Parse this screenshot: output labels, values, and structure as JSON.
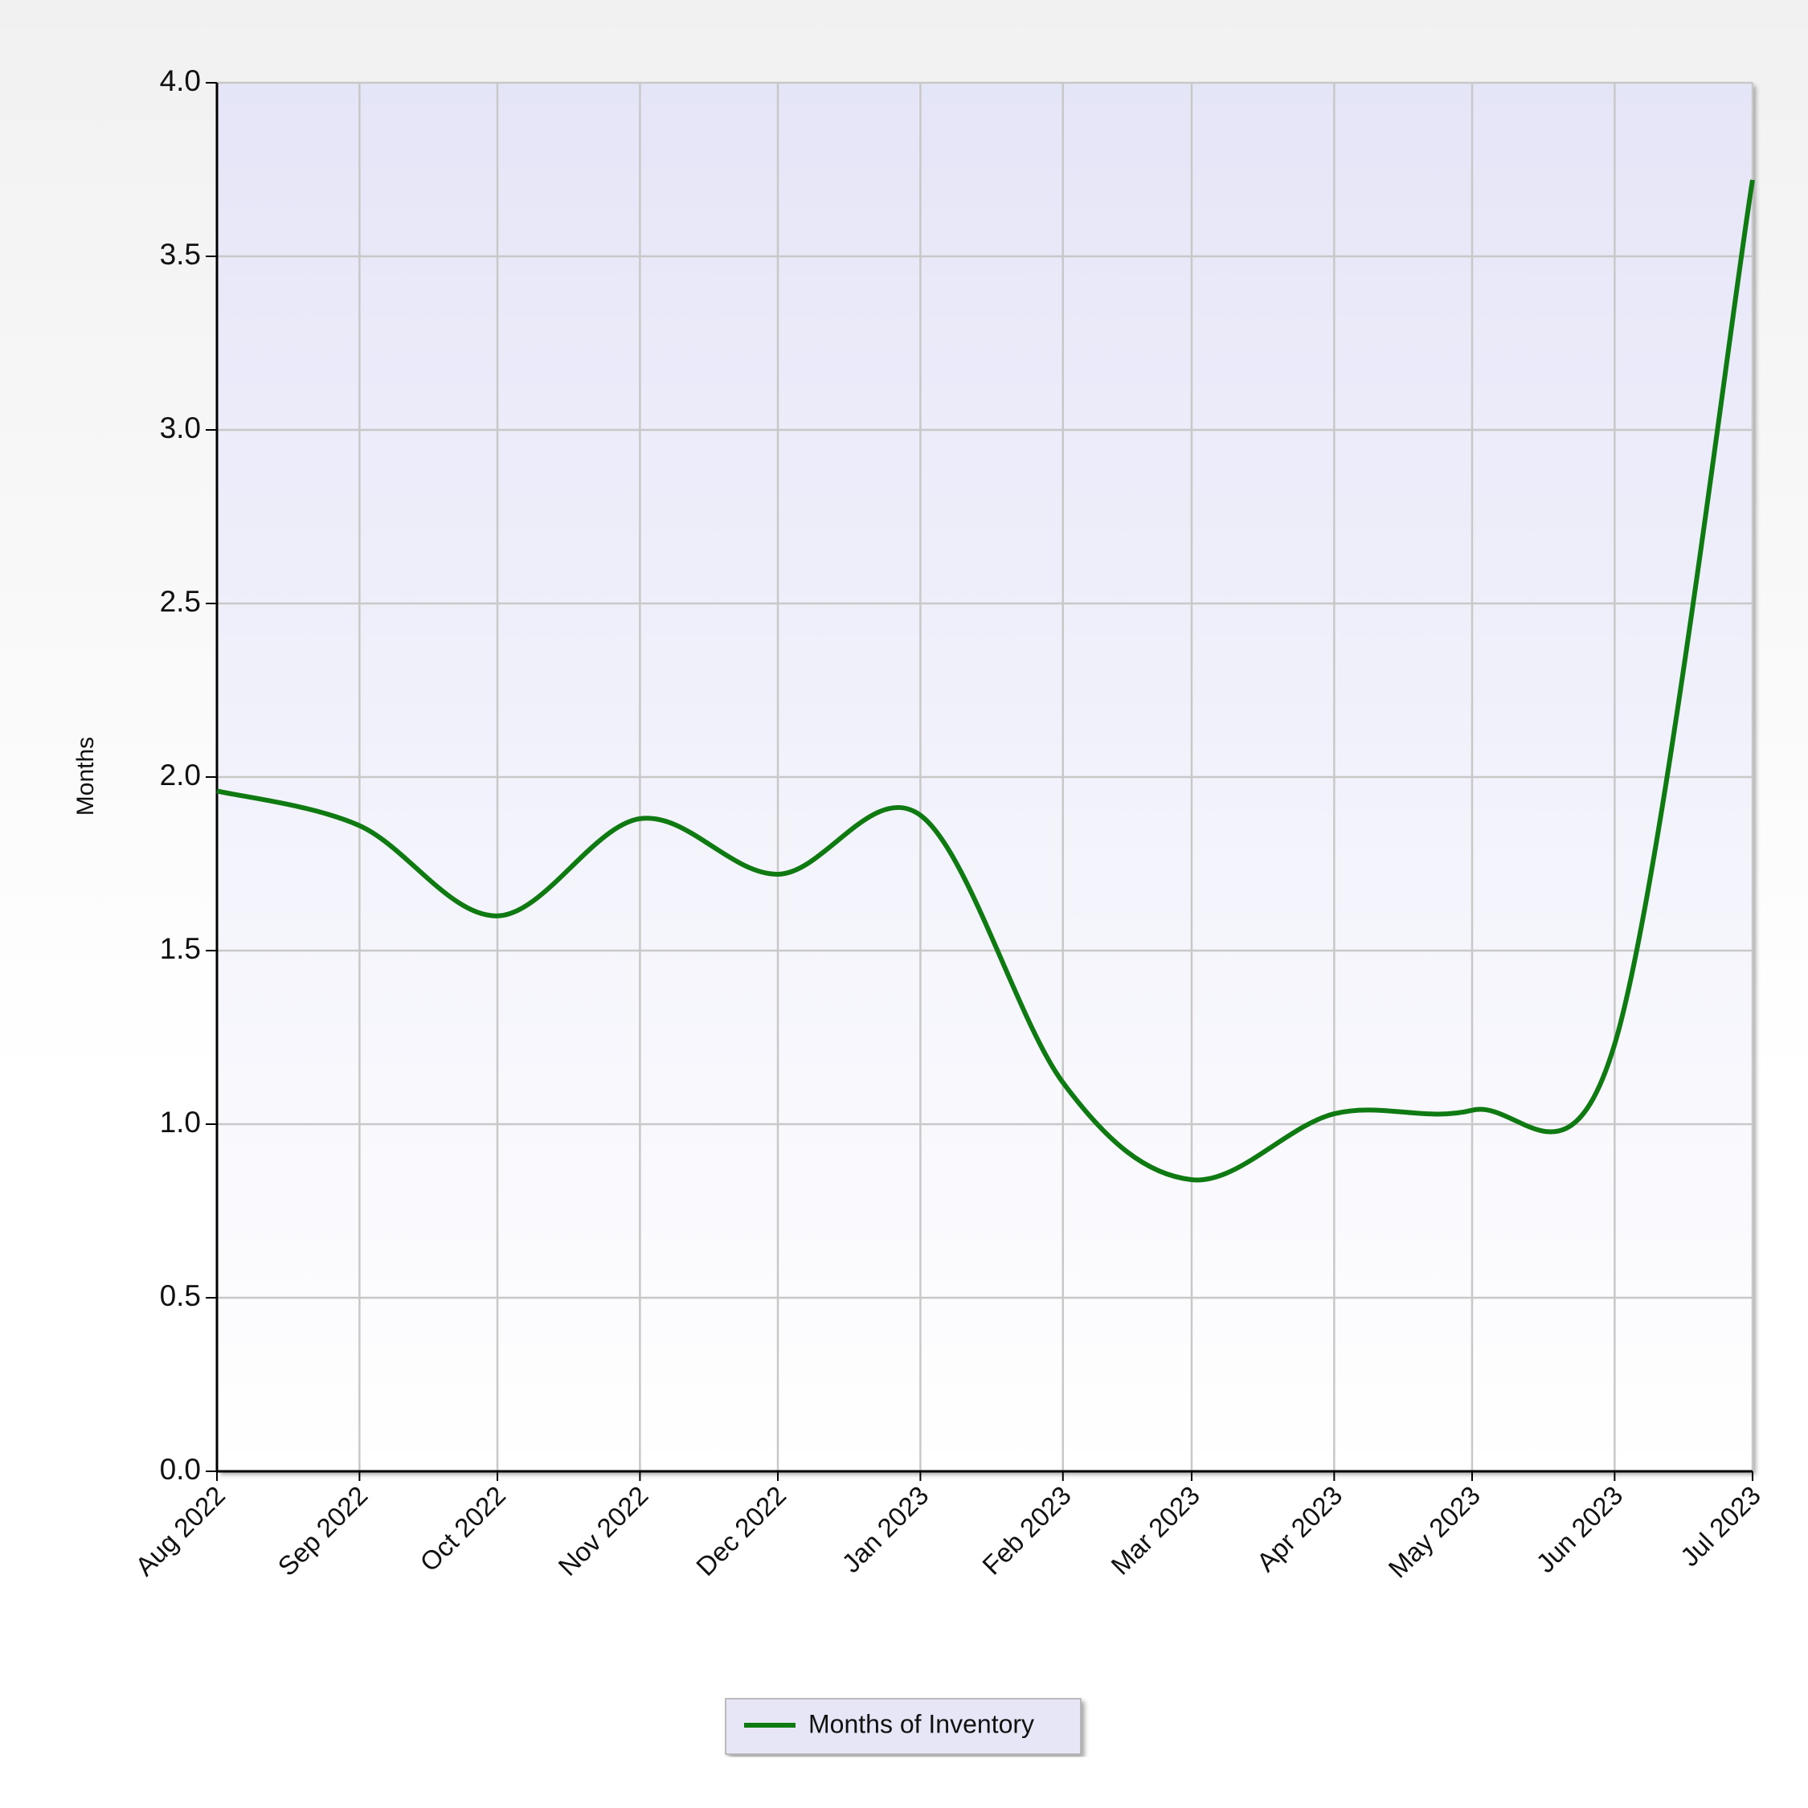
{
  "chart_data": {
    "type": "line",
    "y_label": "Months",
    "categories": [
      "Aug 2022",
      "Sep 2022",
      "Oct 2022",
      "Nov 2022",
      "Dec 2022",
      "Jan 2023",
      "Feb 2023",
      "Mar 2023",
      "Apr 2023",
      "May 2023",
      "Jun 2023",
      "Jul 2023"
    ],
    "series": [
      {
        "name": "Months of Inventory",
        "color": "#0f7a12",
        "values": [
          1.96,
          1.86,
          1.6,
          1.88,
          1.72,
          1.89,
          1.12,
          0.84,
          1.03,
          1.04,
          1.23,
          3.72
        ]
      }
    ],
    "ylim": [
      0,
      4
    ],
    "yticks": [
      {
        "value": 0,
        "label": "0.0"
      },
      0.5,
      {
        "value": 1,
        "label": "1.0"
      },
      1.5,
      {
        "value": 2,
        "label": "2.0"
      },
      2.5,
      {
        "value": 3,
        "label": "3.0"
      },
      3.5,
      {
        "value": 4,
        "label": "4.0"
      }
    ],
    "grid": true,
    "legend": "bottom"
  }
}
